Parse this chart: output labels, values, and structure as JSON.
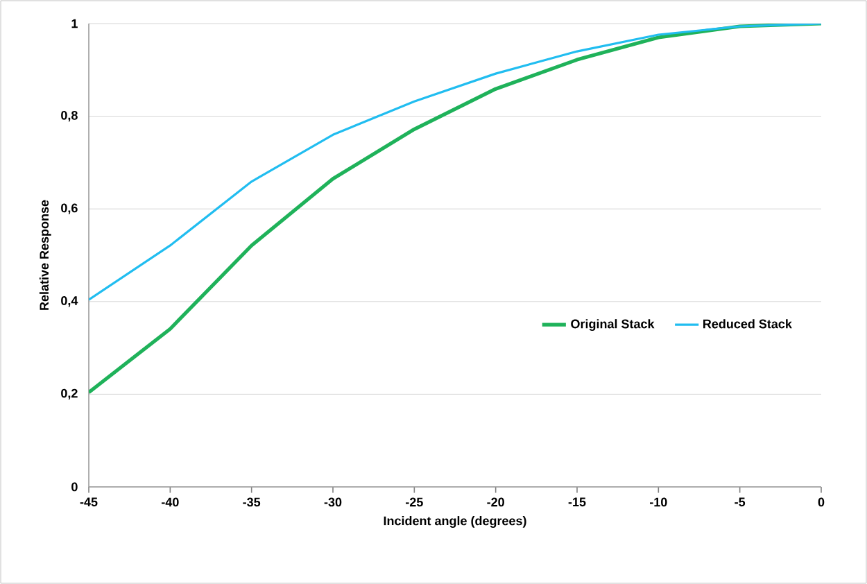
{
  "chart_data": {
    "type": "line",
    "xlabel": "Incident angle (degrees)",
    "ylabel": "Relative Response",
    "x": [
      -45,
      -40,
      -35,
      -30,
      -25,
      -20,
      -15,
      -10,
      -5,
      0
    ],
    "series": [
      {
        "name": "Original Stack",
        "color": "#1fb25a",
        "values": [
          0.204,
          0.341,
          0.521,
          0.665,
          0.772,
          0.859,
          0.922,
          0.97,
          0.994,
          1
        ]
      },
      {
        "name": "Reduced Stack",
        "color": "#21bdf0",
        "values": [
          0.404,
          0.521,
          0.659,
          0.76,
          0.832,
          0.892,
          0.94,
          0.976,
          0.994,
          1
        ]
      }
    ],
    "xlim": [
      -45,
      0
    ],
    "xticks": [
      -45,
      -40,
      -35,
      -30,
      -25,
      -20,
      -15,
      -10,
      -5,
      0
    ],
    "ylim": [
      0,
      1
    ],
    "yticks": [
      0,
      {
        "value": 0.2,
        "label": "0,2"
      },
      {
        "value": 0.4,
        "label": "0,4"
      },
      {
        "value": 0.6,
        "label": "0,6"
      },
      {
        "value": 0.8,
        "label": "0,8"
      },
      1
    ],
    "grid": "y",
    "legend": "right",
    "marker": "none",
    "line_style": "solid"
  }
}
